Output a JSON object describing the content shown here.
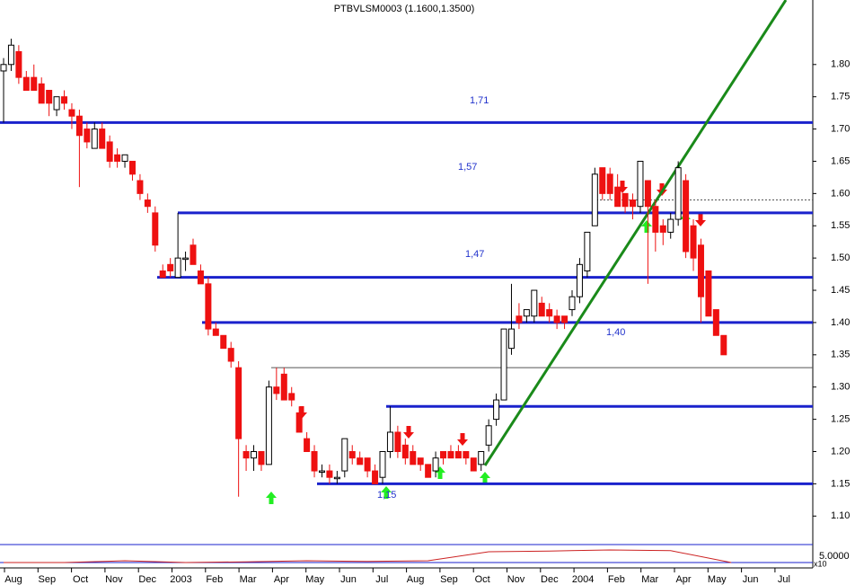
{
  "chart_data": {
    "type": "candlestick",
    "title": "PTBVLSM0003 (1.1600,1.3500)",
    "categories": [
      "Aug",
      "Sep",
      "Oct",
      "Nov",
      "Dec",
      "2003",
      "Feb",
      "Mar",
      "Apr",
      "May",
      "Jun",
      "Jul",
      "Aug",
      "Sep",
      "Oct",
      "Nov",
      "Dec",
      "2004",
      "Feb",
      "Mar",
      "Apr",
      "May",
      "Jun",
      "Jul"
    ],
    "ylim": [
      1.06,
      1.9
    ],
    "yticks": [
      {
        "value": 1.8,
        "label": "1.80"
      },
      {
        "value": 1.75,
        "label": "1.75"
      },
      {
        "value": 1.7,
        "label": "1.70"
      },
      {
        "value": 1.65,
        "label": "1.65"
      },
      {
        "value": 1.6,
        "label": "1.60"
      },
      {
        "value": 1.55,
        "label": "1.55"
      },
      {
        "value": 1.5,
        "label": "1.50"
      },
      {
        "value": 1.45,
        "label": "1.45"
      },
      {
        "value": 1.4,
        "label": "1.40"
      },
      {
        "value": 1.35,
        "label": "1.35"
      },
      {
        "value": 1.3,
        "label": "1.30"
      },
      {
        "value": 1.25,
        "label": "1.25"
      },
      {
        "value": 1.2,
        "label": "1.20"
      },
      {
        "value": 1.15,
        "label": "1.15"
      },
      {
        "value": 1.1,
        "label": "1.10"
      }
    ],
    "up_color": "#ffffff",
    "down_color": "#ee1111",
    "candles": [
      [
        1.79,
        1.81,
        1.71,
        1.8
      ],
      [
        1.8,
        1.84,
        1.79,
        1.83
      ],
      [
        1.82,
        1.83,
        1.77,
        1.78
      ],
      [
        1.78,
        1.79,
        1.76,
        1.76
      ],
      [
        1.78,
        1.8,
        1.76,
        1.76
      ],
      [
        1.77,
        1.78,
        1.74,
        1.74
      ],
      [
        1.76,
        1.76,
        1.72,
        1.74
      ],
      [
        1.73,
        1.75,
        1.72,
        1.75
      ],
      [
        1.75,
        1.76,
        1.73,
        1.74
      ],
      [
        1.73,
        1.74,
        1.7,
        1.72
      ],
      [
        1.72,
        1.73,
        1.61,
        1.69
      ],
      [
        1.7,
        1.71,
        1.67,
        1.68
      ],
      [
        1.67,
        1.71,
        1.67,
        1.7
      ],
      [
        1.7,
        1.71,
        1.67,
        1.67
      ],
      [
        1.68,
        1.69,
        1.64,
        1.65
      ],
      [
        1.66,
        1.67,
        1.64,
        1.65
      ],
      [
        1.65,
        1.66,
        1.64,
        1.66
      ],
      [
        1.65,
        1.65,
        1.62,
        1.63
      ],
      [
        1.62,
        1.63,
        1.59,
        1.6
      ],
      [
        1.59,
        1.6,
        1.57,
        1.58
      ],
      [
        1.57,
        1.58,
        1.51,
        1.52
      ],
      [
        1.48,
        1.49,
        1.47,
        1.47
      ],
      [
        1.49,
        1.5,
        1.47,
        1.48
      ],
      [
        1.47,
        1.57,
        1.47,
        1.5
      ],
      [
        1.5,
        1.51,
        1.48,
        1.5
      ],
      [
        1.52,
        1.53,
        1.49,
        1.49
      ],
      [
        1.48,
        1.49,
        1.46,
        1.46
      ],
      [
        1.46,
        1.47,
        1.38,
        1.39
      ],
      [
        1.39,
        1.4,
        1.38,
        1.38
      ],
      [
        1.38,
        1.38,
        1.36,
        1.36
      ],
      [
        1.36,
        1.37,
        1.33,
        1.34
      ],
      [
        1.33,
        1.34,
        1.13,
        1.22
      ],
      [
        1.2,
        1.21,
        1.17,
        1.19
      ],
      [
        1.19,
        1.21,
        1.17,
        1.2
      ],
      [
        1.2,
        1.2,
        1.17,
        1.18
      ],
      [
        1.18,
        1.31,
        1.18,
        1.3
      ],
      [
        1.3,
        1.33,
        1.28,
        1.29
      ],
      [
        1.32,
        1.33,
        1.28,
        1.28
      ],
      [
        1.29,
        1.3,
        1.27,
        1.28
      ],
      [
        1.26,
        1.27,
        1.23,
        1.23
      ],
      [
        1.22,
        1.23,
        1.2,
        1.2
      ],
      [
        1.2,
        1.21,
        1.16,
        1.17
      ],
      [
        1.17,
        1.18,
        1.16,
        1.17
      ],
      [
        1.17,
        1.18,
        1.15,
        1.16
      ],
      [
        1.16,
        1.17,
        1.15,
        1.16
      ],
      [
        1.17,
        1.22,
        1.16,
        1.22
      ],
      [
        1.2,
        1.21,
        1.18,
        1.19
      ],
      [
        1.19,
        1.2,
        1.18,
        1.18
      ],
      [
        1.19,
        1.19,
        1.16,
        1.17
      ],
      [
        1.17,
        1.18,
        1.15,
        1.15
      ],
      [
        1.16,
        1.2,
        1.15,
        1.2
      ],
      [
        1.2,
        1.27,
        1.19,
        1.23
      ],
      [
        1.23,
        1.24,
        1.19,
        1.2
      ],
      [
        1.21,
        1.22,
        1.18,
        1.19
      ],
      [
        1.2,
        1.21,
        1.18,
        1.18
      ],
      [
        1.19,
        1.19,
        1.17,
        1.18
      ],
      [
        1.18,
        1.18,
        1.16,
        1.16
      ],
      [
        1.17,
        1.2,
        1.16,
        1.19
      ],
      [
        1.2,
        1.2,
        1.18,
        1.19
      ],
      [
        1.2,
        1.21,
        1.19,
        1.19
      ],
      [
        1.2,
        1.21,
        1.19,
        1.19
      ],
      [
        1.2,
        1.2,
        1.18,
        1.19
      ],
      [
        1.19,
        1.19,
        1.17,
        1.17
      ],
      [
        1.18,
        1.2,
        1.17,
        1.2
      ],
      [
        1.21,
        1.25,
        1.2,
        1.24
      ],
      [
        1.25,
        1.29,
        1.24,
        1.28
      ],
      [
        1.28,
        1.39,
        1.28,
        1.39
      ],
      [
        1.36,
        1.46,
        1.35,
        1.39
      ],
      [
        1.41,
        1.43,
        1.39,
        1.4
      ],
      [
        1.41,
        1.42,
        1.4,
        1.42
      ],
      [
        1.41,
        1.45,
        1.4,
        1.45
      ],
      [
        1.43,
        1.44,
        1.41,
        1.41
      ],
      [
        1.42,
        1.43,
        1.4,
        1.41
      ],
      [
        1.41,
        1.42,
        1.39,
        1.4
      ],
      [
        1.41,
        1.41,
        1.39,
        1.4
      ],
      [
        1.42,
        1.45,
        1.41,
        1.44
      ],
      [
        1.44,
        1.5,
        1.43,
        1.49
      ],
      [
        1.48,
        1.54,
        1.47,
        1.54
      ],
      [
        1.55,
        1.64,
        1.55,
        1.63
      ],
      [
        1.64,
        1.64,
        1.59,
        1.6
      ],
      [
        1.63,
        1.64,
        1.59,
        1.6
      ],
      [
        1.61,
        1.63,
        1.58,
        1.58
      ],
      [
        1.6,
        1.6,
        1.57,
        1.58
      ],
      [
        1.59,
        1.6,
        1.56,
        1.58
      ],
      [
        1.58,
        1.65,
        1.57,
        1.65
      ],
      [
        1.62,
        1.62,
        1.46,
        1.58
      ],
      [
        1.58,
        1.59,
        1.51,
        1.54
      ],
      [
        1.55,
        1.56,
        1.52,
        1.54
      ],
      [
        1.54,
        1.57,
        1.53,
        1.56
      ],
      [
        1.56,
        1.65,
        1.55,
        1.64
      ],
      [
        1.62,
        1.63,
        1.5,
        1.51
      ],
      [
        1.55,
        1.56,
        1.48,
        1.5
      ],
      [
        1.52,
        1.53,
        1.4,
        1.44
      ],
      [
        1.48,
        1.48,
        1.41,
        1.41
      ],
      [
        1.42,
        1.42,
        1.38,
        1.38
      ],
      [
        1.38,
        1.38,
        1.35,
        1.35
      ]
    ],
    "levels": [
      {
        "value": 1.71,
        "label": "1,71"
      },
      {
        "value": 1.57,
        "label": "1,57"
      },
      {
        "value": 1.47,
        "label": "1,47"
      },
      {
        "value": 1.4,
        "label": "1,40"
      },
      {
        "value": 1.27
      },
      {
        "value": 1.15,
        "label": "1,15"
      },
      {
        "value": 1.33
      },
      {
        "value": 1.59
      }
    ],
    "indicator": {
      "ylim": [
        0,
        6
      ],
      "values": [
        1,
        1,
        1.5,
        1,
        1.2,
        1.5,
        1.3,
        1.5,
        4,
        4.2,
        4.5,
        4.3,
        1
      ],
      "level_label": "5.0000",
      "multiplier": "x10"
    }
  }
}
